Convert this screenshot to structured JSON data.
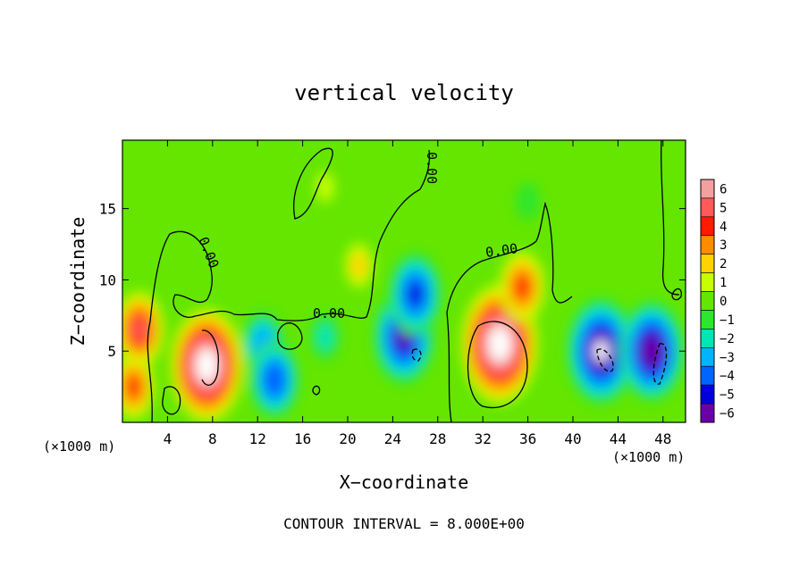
{
  "chart_data": {
    "type": "heatmap",
    "title": "vertical velocity",
    "xlabel": "X−coordinate",
    "ylabel": "Z−coordinate",
    "x_unit_left": "(×1000 m)",
    "x_unit_right": "(×1000 m)",
    "footer": "CONTOUR INTERVAL = 8.000E+00",
    "xlim": [
      0,
      50
    ],
    "ylim": [
      0,
      19.8
    ],
    "x_ticks": [
      4,
      8,
      12,
      16,
      20,
      24,
      28,
      32,
      36,
      40,
      44,
      48
    ],
    "y_ticks": [
      5,
      10,
      15
    ],
    "contour_labels": [
      "0.00",
      "0.00",
      "0.00",
      "0.00"
    ],
    "colorbar": {
      "ticks": [
        6,
        5,
        4,
        3,
        2,
        1,
        0,
        -1,
        -2,
        -3,
        -4,
        -5,
        -6
      ],
      "colors": [
        "#f4a0a0",
        "#ff5a5a",
        "#ff1a00",
        "#ff8c00",
        "#ffd200",
        "#c8ff00",
        "#64e600",
        "#2ee62e",
        "#00e6b4",
        "#00b4ff",
        "#0064ff",
        "#0000dc",
        "#6a00a8"
      ],
      "saturated_color": "#ffffff"
    },
    "features": [
      {
        "x": 1.5,
        "z": 6.5,
        "w": 4.5
      },
      {
        "x": 1.0,
        "z": 2.5,
        "w": 3.5
      },
      {
        "x": 7.5,
        "z": 4.0,
        "w": 7.5
      },
      {
        "x": 12.5,
        "z": 5.5,
        "w": -3.5
      },
      {
        "x": 13.5,
        "z": 3.0,
        "w": -4.5
      },
      {
        "x": 18.0,
        "z": 6.0,
        "w": -2.0
      },
      {
        "x": 21.0,
        "z": 11.0,
        "w": 1.8
      },
      {
        "x": 25.0,
        "z": 6.0,
        "w": -6.0
      },
      {
        "x": 26.0,
        "z": 9.0,
        "w": -5.0
      },
      {
        "x": 33.5,
        "z": 5.5,
        "w": 8.0
      },
      {
        "x": 35.5,
        "z": 9.5,
        "w": 4.0
      },
      {
        "x": 42.5,
        "z": 5.0,
        "w": -7.0
      },
      {
        "x": 47.0,
        "z": 5.0,
        "w": -6.5
      },
      {
        "x": 36.0,
        "z": 15.5,
        "w": -1.2
      },
      {
        "x": 18.0,
        "z": 16.5,
        "w": 0.6
      }
    ]
  }
}
